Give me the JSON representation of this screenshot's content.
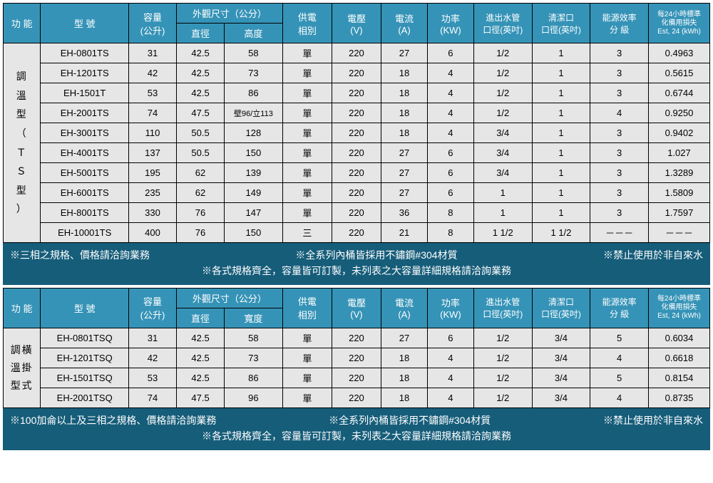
{
  "colors": {
    "header_bg": "#3593b7",
    "header_fg": "#ffffff",
    "cell_bg": "#e6e6e6",
    "cell_fg": "#000000",
    "border": "#000000",
    "notes_bg": "#165d7a",
    "notes_fg": "#ffffff"
  },
  "headers": {
    "function": "功 能",
    "model": "型 號",
    "capacity_l1": "容量",
    "capacity_l2": "(公升)",
    "dims_group": "外觀尺寸（公分）",
    "diameter": "直徑",
    "height": "高度",
    "width": "寬度",
    "phase_l1": "供電",
    "phase_l2": "相別",
    "voltage_l1": "電壓",
    "voltage_l2": "(V)",
    "current_l1": "電流",
    "current_l2": "(A)",
    "power_l1": "功率",
    "power_l2": "(KW)",
    "pipe_l1": "進出水管",
    "pipe_l2": "口徑(英吋)",
    "clean_l1": "清潔口",
    "clean_l2": "口徑(英吋)",
    "eff_l1": "能源效率",
    "eff_l2": "分     級",
    "est_l1": "每24小時標準",
    "est_l2": "化備用損失",
    "est_l3": "Est, 24 (kWh)"
  },
  "type_vertical": "調溫型（ＴＳ型）",
  "type_horizontal_a": "調橫",
  "type_horizontal_b": "溫掛",
  "type_horizontal_c": "型式",
  "type_horizontal_label": "調溫型橫掛式",
  "table1": {
    "type": "table",
    "rows": [
      {
        "model": "EH-0801TS",
        "cap": "31",
        "dia": "42.5",
        "h": "58",
        "phase": "單",
        "v": "220",
        "a": "27",
        "kw": "6",
        "pipe": "1/2",
        "clean": "1",
        "eff": "3",
        "est": "0.4963"
      },
      {
        "model": "EH-1201TS",
        "cap": "42",
        "dia": "42.5",
        "h": "73",
        "phase": "單",
        "v": "220",
        "a": "18",
        "kw": "4",
        "pipe": "1/2",
        "clean": "1",
        "eff": "3",
        "est": "0.5615"
      },
      {
        "model": "EH-1501T",
        "cap": "53",
        "dia": "42.5",
        "h": "86",
        "phase": "單",
        "v": "220",
        "a": "18",
        "kw": "4",
        "pipe": "1/2",
        "clean": "1",
        "eff": "3",
        "est": "0.6744"
      },
      {
        "model": "EH-2001TS",
        "cap": "74",
        "dia": "47.5",
        "h": "壁96/立113",
        "phase": "單",
        "v": "220",
        "a": "18",
        "kw": "4",
        "pipe": "1/2",
        "clean": "1",
        "eff": "4",
        "est": "0.9250"
      },
      {
        "model": "EH-3001TS",
        "cap": "110",
        "dia": "50.5",
        "h": "128",
        "phase": "單",
        "v": "220",
        "a": "18",
        "kw": "4",
        "pipe": "3/4",
        "clean": "1",
        "eff": "3",
        "est": "0.9402"
      },
      {
        "model": "EH-4001TS",
        "cap": "137",
        "dia": "50.5",
        "h": "150",
        "phase": "單",
        "v": "220",
        "a": "27",
        "kw": "6",
        "pipe": "3/4",
        "clean": "1",
        "eff": "3",
        "est": "1.027"
      },
      {
        "model": "EH-5001TS",
        "cap": "195",
        "dia": "62",
        "h": "139",
        "phase": "單",
        "v": "220",
        "a": "27",
        "kw": "6",
        "pipe": "3/4",
        "clean": "1",
        "eff": "3",
        "est": "1.3289"
      },
      {
        "model": "EH-6001TS",
        "cap": "235",
        "dia": "62",
        "h": "149",
        "phase": "單",
        "v": "220",
        "a": "27",
        "kw": "6",
        "pipe": "1",
        "clean": "1",
        "eff": "3",
        "est": "1.5809"
      },
      {
        "model": "EH-8001TS",
        "cap": "330",
        "dia": "76",
        "h": "147",
        "phase": "單",
        "v": "220",
        "a": "36",
        "kw": "8",
        "pipe": "1",
        "clean": "1",
        "eff": "3",
        "est": "1.7597"
      },
      {
        "model": "EH-10001TS",
        "cap": "400",
        "dia": "76",
        "h": "150",
        "phase": "三",
        "v": "220",
        "a": "21",
        "kw": "8",
        "pipe": "1 1/2",
        "clean": "1 1/2",
        "eff": "－－－",
        "est": "－－－"
      }
    ]
  },
  "notes1": {
    "a": "※三相之規格、價格請洽詢業務",
    "b": "※全系列內桶皆採用不鏽鋼#304材質",
    "c": "※禁止使用於非自來水",
    "d": "※各式規格齊全，容量皆可訂製，未列表之大容量詳細規格請洽詢業務"
  },
  "table2": {
    "type": "table",
    "rows": [
      {
        "model": "EH-0801TSQ",
        "cap": "31",
        "dia": "42.5",
        "h": "58",
        "phase": "單",
        "v": "220",
        "a": "27",
        "kw": "6",
        "pipe": "1/2",
        "clean": "3/4",
        "eff": "5",
        "est": "0.6034"
      },
      {
        "model": "EH-1201TSQ",
        "cap": "42",
        "dia": "42.5",
        "h": "73",
        "phase": "單",
        "v": "220",
        "a": "18",
        "kw": "4",
        "pipe": "1/2",
        "clean": "3/4",
        "eff": "4",
        "est": "0.6618"
      },
      {
        "model": "EH-1501TSQ",
        "cap": "53",
        "dia": "42.5",
        "h": "86",
        "phase": "單",
        "v": "220",
        "a": "18",
        "kw": "4",
        "pipe": "1/2",
        "clean": "3/4",
        "eff": "5",
        "est": "0.8154"
      },
      {
        "model": "EH-2001TSQ",
        "cap": "74",
        "dia": "47.5",
        "h": "96",
        "phase": "單",
        "v": "220",
        "a": "18",
        "kw": "4",
        "pipe": "1/2",
        "clean": "3/4",
        "eff": "4",
        "est": "0.8735"
      }
    ]
  },
  "notes2": {
    "a": "※100加侖以上及三相之規格、價格請洽詢業務",
    "b": "※全系列內桶皆採用不鏽鋼#304材質",
    "c": "※禁止使用於非自來水",
    "d": "※各式規格齊全，容量皆可訂製，未列表之大容量詳細規格請洽詢業務"
  }
}
